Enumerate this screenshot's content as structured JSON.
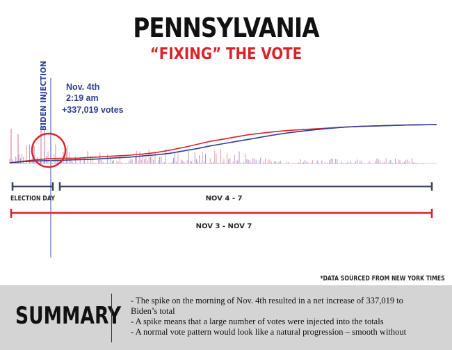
{
  "header": {
    "title": "PENNSYLVANIA",
    "subtitle": "“FIXING” THE VOTE"
  },
  "colors": {
    "biden": "#2b3f91",
    "trump": "#d8232a",
    "baseline": "#cfcfd8"
  },
  "chart_data": {
    "type": "line",
    "x_range": [
      "Nov 3",
      "Nov 7"
    ],
    "series": [
      {
        "color": "#d8232a",
        "values": [
          0.0,
          0.04,
          0.08,
          0.11,
          0.12,
          0.12,
          0.14,
          0.16,
          0.18,
          0.2,
          0.23,
          0.27,
          0.33,
          0.4,
          0.48,
          0.56,
          0.62,
          0.68,
          0.74,
          0.78,
          0.82,
          0.85,
          0.87,
          0.89,
          0.91,
          0.93,
          0.95,
          0.96,
          0.97,
          0.98,
          0.99,
          0.995,
          1.0
        ]
      },
      {
        "color": "#2b3f91",
        "values": [
          0.0,
          0.03,
          0.05,
          0.06,
          0.07,
          0.08,
          0.09,
          0.11,
          0.13,
          0.15,
          0.18,
          0.21,
          0.25,
          0.31,
          0.37,
          0.44,
          0.5,
          0.56,
          0.62,
          0.68,
          0.74,
          0.79,
          0.83,
          0.87,
          0.9,
          0.93,
          0.95,
          0.96,
          0.97,
          0.98,
          0.99,
          0.995,
          1.0
        ]
      }
    ],
    "annotations": {
      "injection_label": "BIDEN INJECTION",
      "spike_date": "Nov. 4th",
      "spike_time": "2:19 am",
      "spike_votes": "+337,019 votes"
    },
    "periods": [
      {
        "label": "ELECTION DAY",
        "color": "#2b3f91"
      },
      {
        "label": "NOV 4 - 7",
        "color": "#2b3f91"
      },
      {
        "label": "NOV 3 - NOV 7",
        "color": "#d8232a"
      }
    ]
  },
  "source_note": "*DATA SOURCED FROM NEW YORK TIMES",
  "summary": {
    "title": "SUMMARY",
    "lines": [
      "- The spike on the morning of Nov. 4th resulted in a net increase of 337,019 to",
      "Biden’s total",
      "- A spike means that a large number of votes were injected into the totals",
      "- A normal vote pattern would look like a natural progression – smooth without"
    ]
  }
}
